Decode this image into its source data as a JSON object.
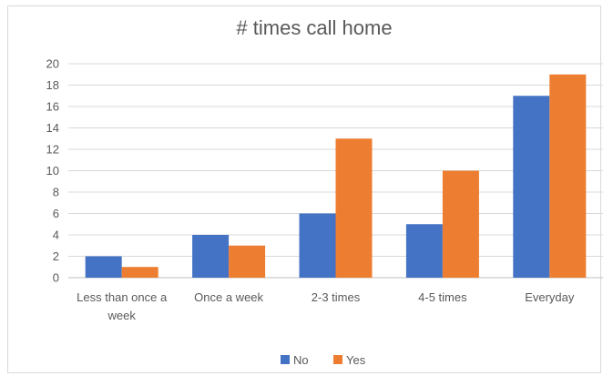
{
  "chart_data": {
    "type": "bar",
    "title": "# times call home",
    "xlabel": "",
    "ylabel": "",
    "ylim": [
      0,
      20
    ],
    "yticks": [
      0,
      2,
      4,
      6,
      8,
      10,
      12,
      14,
      16,
      18,
      20
    ],
    "categories": [
      [
        "Less than once a",
        "week"
      ],
      [
        "Once a week"
      ],
      [
        "2-3 times"
      ],
      [
        "4-5 times"
      ],
      [
        "Everyday"
      ]
    ],
    "series": [
      {
        "name": "No",
        "color": "#4472C4",
        "values": [
          2,
          4,
          6,
          5,
          17
        ]
      },
      {
        "name": "Yes",
        "color": "#ED7D31",
        "values": [
          1,
          3,
          13,
          10,
          19
        ]
      }
    ],
    "grid": true,
    "legend": "bottom"
  }
}
